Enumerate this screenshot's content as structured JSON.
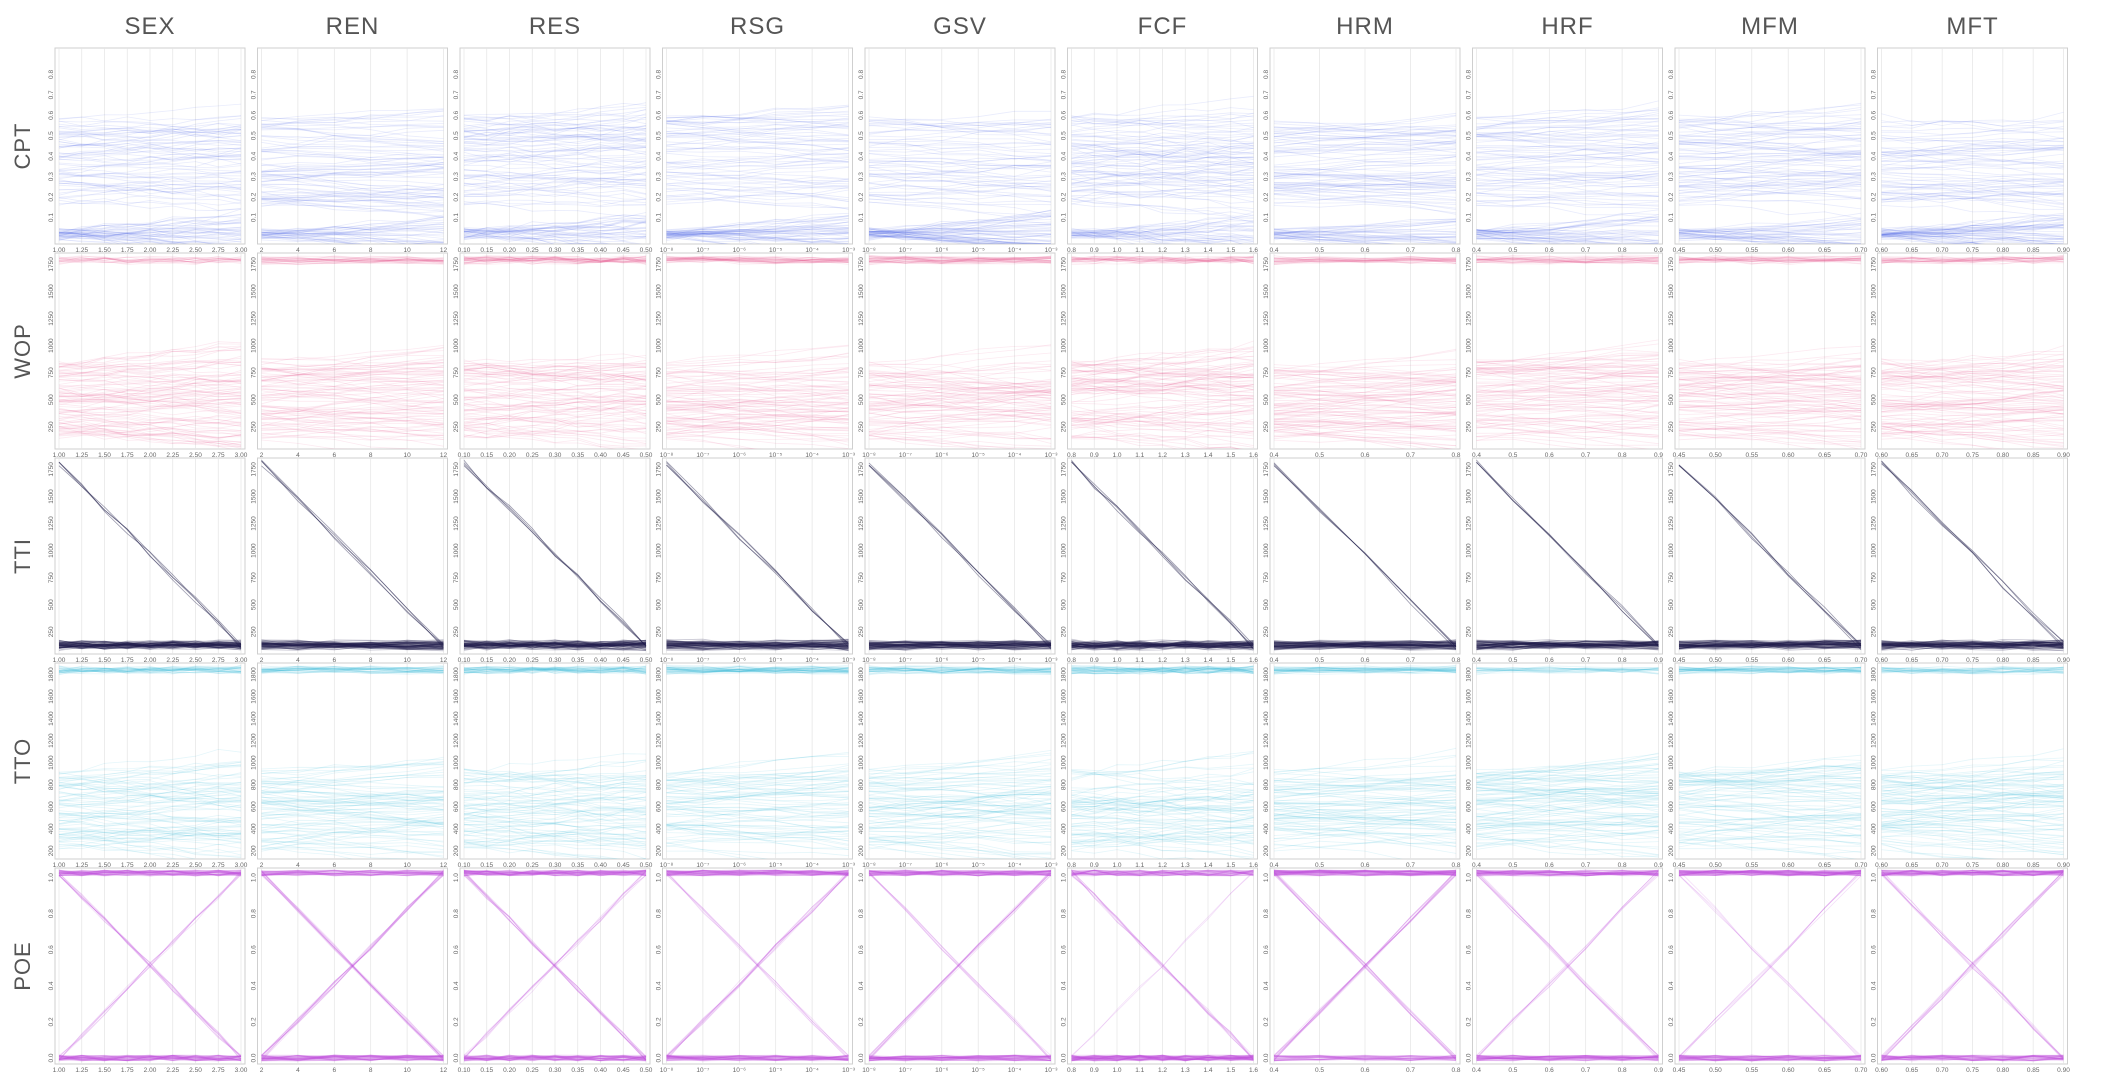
{
  "chart_data": {
    "type": "line",
    "description_kind": "parallel-sensitivity-grid",
    "columns": [
      {
        "name": "SEX",
        "scale": "linear",
        "range": [
          1.0,
          3.0
        ],
        "ticks": [
          "1.00",
          "1.25",
          "1.50",
          "1.75",
          "2.00",
          "2.25",
          "2.50",
          "2.75",
          "3.00"
        ]
      },
      {
        "name": "REN",
        "scale": "linear",
        "range": [
          2,
          12
        ],
        "ticks": [
          "2",
          "4",
          "6",
          "8",
          "10",
          "12"
        ]
      },
      {
        "name": "RES",
        "scale": "linear",
        "range": [
          0.1,
          0.5
        ],
        "ticks": [
          "0.10",
          "0.15",
          "0.20",
          "0.25",
          "0.30",
          "0.35",
          "0.40",
          "0.45",
          "0.50"
        ]
      },
      {
        "name": "RSG",
        "scale": "log",
        "range": [
          -8,
          -2
        ],
        "ticks": [
          "10⁻⁸",
          "10⁻⁷",
          "10⁻⁶",
          "10⁻⁵",
          "10⁻⁴",
          "10⁻³"
        ]
      },
      {
        "name": "GSV",
        "scale": "log",
        "range": [
          -8,
          -2
        ],
        "ticks": [
          "10⁻⁸",
          "10⁻⁷",
          "10⁻⁶",
          "10⁻⁵",
          "10⁻⁴",
          "10⁻³"
        ]
      },
      {
        "name": "FCF",
        "scale": "linear",
        "range": [
          0.8,
          1.6
        ],
        "ticks": [
          "0.8",
          "0.9",
          "1.0",
          "1.1",
          "1.2",
          "1.3",
          "1.4",
          "1.5",
          "1.6"
        ]
      },
      {
        "name": "HRM",
        "scale": "linear",
        "range": [
          0.35,
          0.9
        ],
        "ticks": [
          "0.4",
          "0.5",
          "0.6",
          "0.7",
          "0.8"
        ]
      },
      {
        "name": "HRF",
        "scale": "linear",
        "range": [
          0.4,
          0.95
        ],
        "ticks": [
          "0.4",
          "0.5",
          "0.6",
          "0.7",
          "0.8",
          "0.9"
        ]
      },
      {
        "name": "MFM",
        "scale": "linear",
        "range": [
          0.45,
          0.75
        ],
        "ticks": [
          "0.45",
          "0.50",
          "0.55",
          "0.60",
          "0.65",
          "0.70"
        ]
      },
      {
        "name": "MFT",
        "scale": "linear",
        "range": [
          0.58,
          0.92
        ],
        "ticks": [
          "0.60",
          "0.65",
          "0.70",
          "0.75",
          "0.80",
          "0.85",
          "0.90"
        ]
      }
    ],
    "rows": [
      {
        "name": "CPT",
        "color": "#4a62e6",
        "range": [
          0,
          0.9
        ],
        "ticks": [
          "0.1",
          "0.2",
          "0.3",
          "0.4",
          "0.5",
          "0.6",
          "0.7",
          "0.8"
        ]
      },
      {
        "name": "WOP",
        "color": "#e8508f",
        "range": [
          100,
          1800
        ],
        "ticks": [
          "250",
          "500",
          "750",
          "1000",
          "1250",
          "1500",
          "1750"
        ]
      },
      {
        "name": "TTI",
        "color": "#1e1d4a",
        "range": [
          100,
          1800
        ],
        "ticks": [
          "250",
          "500",
          "750",
          "1000",
          "1250",
          "1500",
          "1750"
        ]
      },
      {
        "name": "TTO",
        "color": "#2bb3d9",
        "range": [
          180,
          1850
        ],
        "ticks": [
          "200",
          "400",
          "600",
          "800",
          "1000",
          "1200",
          "1400",
          "1600",
          "1800"
        ]
      },
      {
        "name": "POE",
        "color": "#c155e0",
        "range": [
          0,
          1.02
        ],
        "ticks": [
          "0.0",
          "0.2",
          "0.4",
          "0.6",
          "0.8",
          "1.0"
        ]
      }
    ]
  }
}
